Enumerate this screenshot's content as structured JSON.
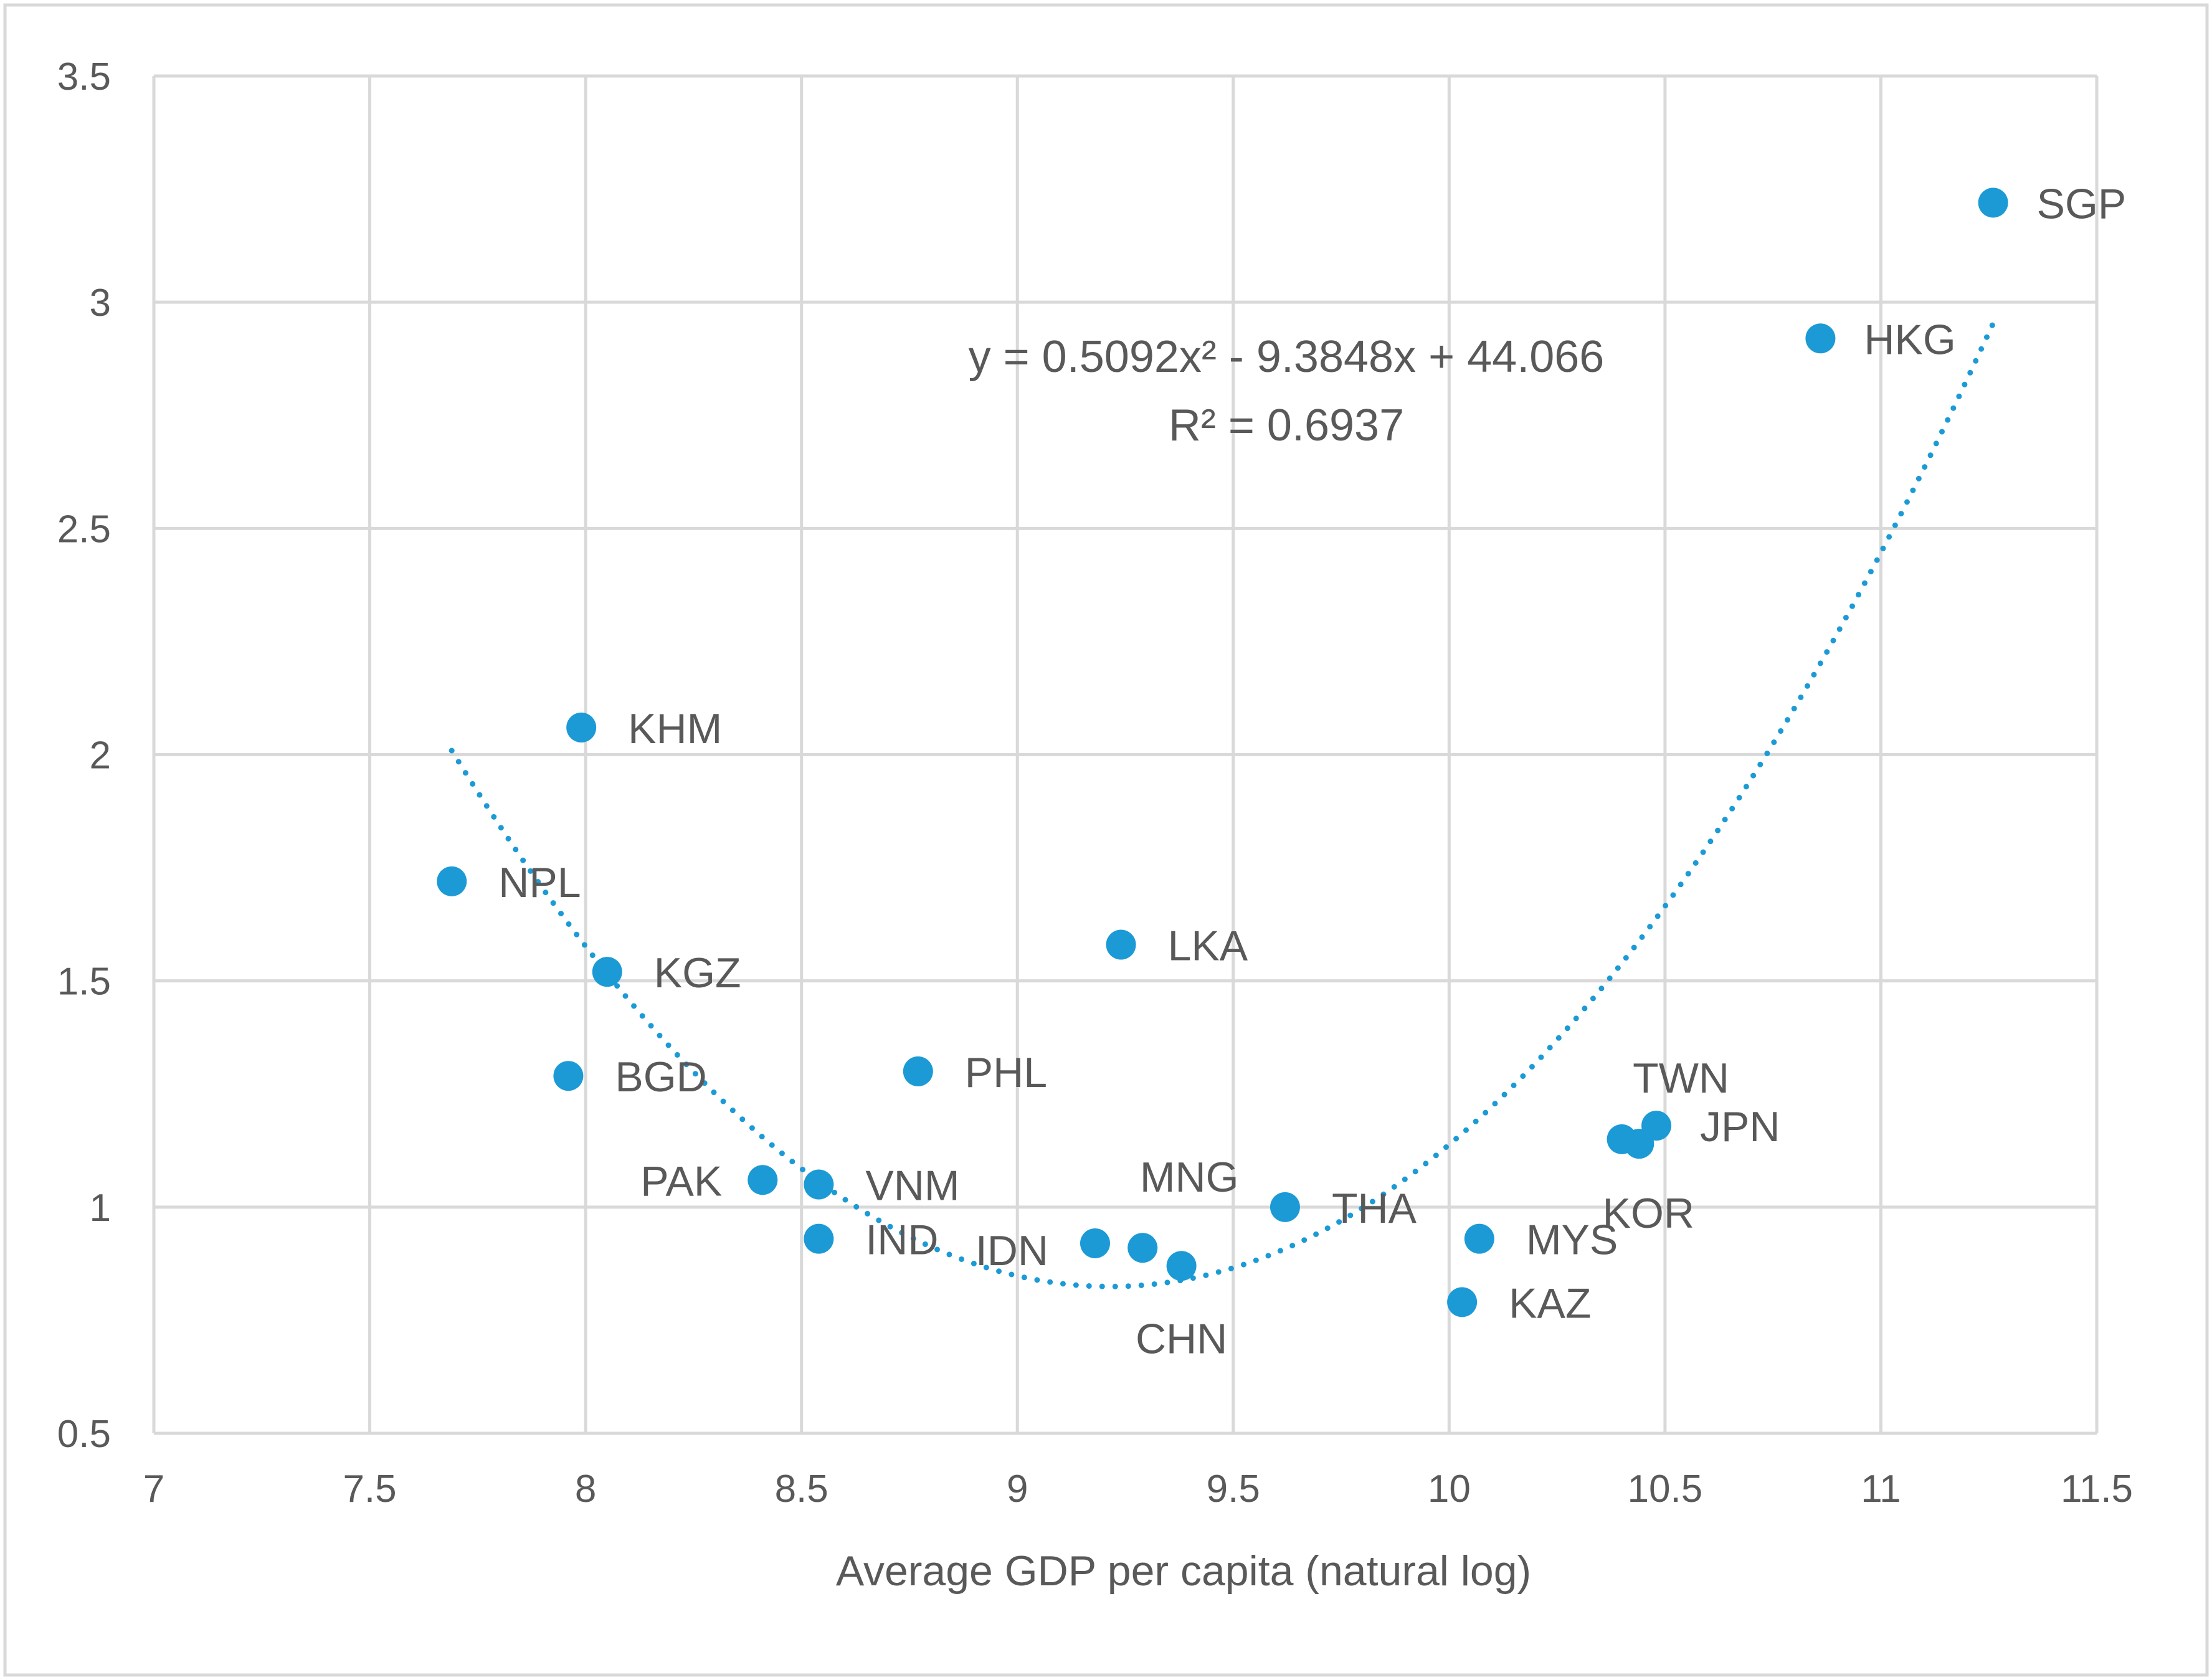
{
  "chart_data": {
    "type": "scatter",
    "title": "",
    "xlabel": "Average GDP per capita (natural log)",
    "ylabel": "",
    "xlim": [
      7,
      11.5
    ],
    "ylim": [
      0.5,
      3.5
    ],
    "x_ticks": [
      "7",
      "7.5",
      "8",
      "8.5",
      "9",
      "9.5",
      "10",
      "10.5",
      "11",
      "11.5"
    ],
    "y_ticks": [
      "0.5",
      "1",
      "1.5",
      "2",
      "2.5",
      "3",
      "3.5"
    ],
    "grid": true,
    "legend": "none",
    "marker_color": "#1B9AD6",
    "grid_color": "#D9D9D9",
    "text_color": "#595959",
    "points": [
      {
        "label": "SGP",
        "x": 11.26,
        "y": 3.22
      },
      {
        "label": "HKG",
        "x": 10.86,
        "y": 2.92
      },
      {
        "label": "KHM",
        "x": 7.99,
        "y": 2.06
      },
      {
        "label": "NPL",
        "x": 7.69,
        "y": 1.72
      },
      {
        "label": "KGZ",
        "x": 8.05,
        "y": 1.52
      },
      {
        "label": "LKA",
        "x": 9.24,
        "y": 1.58
      },
      {
        "label": "BGD",
        "x": 7.96,
        "y": 1.29
      },
      {
        "label": "PHL",
        "x": 8.77,
        "y": 1.3
      },
      {
        "label": "PAK",
        "x": 8.41,
        "y": 1.06
      },
      {
        "label": "VNM",
        "x": 8.54,
        "y": 1.05
      },
      {
        "label": "IND",
        "x": 8.54,
        "y": 0.93
      },
      {
        "label": "IDN",
        "x": 9.18,
        "y": 0.92
      },
      {
        "label": "MNG",
        "x": 9.29,
        "y": 0.91
      },
      {
        "label": "CHN",
        "x": 9.38,
        "y": 0.87
      },
      {
        "label": "THA",
        "x": 9.62,
        "y": 1.0
      },
      {
        "label": "MYS",
        "x": 10.07,
        "y": 0.93
      },
      {
        "label": "KAZ",
        "x": 10.03,
        "y": 0.79
      },
      {
        "label": "TWN",
        "x": 10.4,
        "y": 1.15
      },
      {
        "label": "KOR",
        "x": 10.44,
        "y": 1.14
      },
      {
        "label": "JPN",
        "x": 10.48,
        "y": 1.18
      }
    ],
    "trendline": {
      "type": "polynomial",
      "coefficients": [
        0.5092,
        -9.3848,
        44.066
      ],
      "x_range": [
        7.69,
        11.26
      ],
      "equation": "y = 0.5092x² - 9.3848x + 44.066",
      "r_squared": "R² = 0.6937",
      "color": "#1B9AD6"
    }
  }
}
